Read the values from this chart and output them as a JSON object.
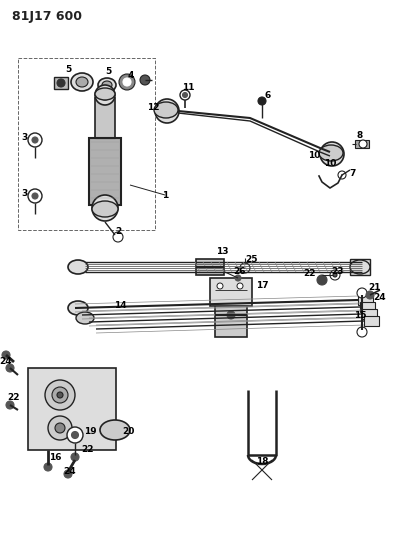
{
  "title": "81J17 600",
  "bg_color": "#ffffff",
  "line_color": "#222222",
  "title_fontsize": 9,
  "label_fontsize": 6.5,
  "fig_width": 3.94,
  "fig_height": 5.33,
  "dpi": 100
}
